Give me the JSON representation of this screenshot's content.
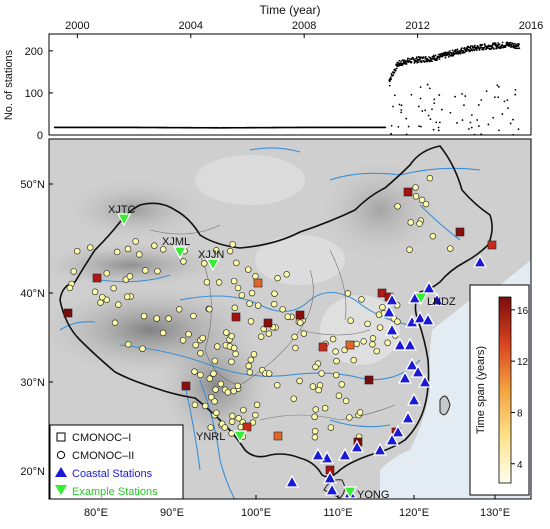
{
  "timeseries": {
    "title": "Time (year)",
    "ylabel": "No. of stations",
    "x_ticks": [
      "2000",
      "2004",
      "2008",
      "2012",
      "2016"
    ],
    "y_ticks": [
      "0",
      "100",
      "200"
    ]
  },
  "map": {
    "lat_labels": [
      "50°N",
      "40°N",
      "30°N",
      "20°N"
    ],
    "lon_labels": [
      "80°E",
      "90°E",
      "100°E",
      "110°E",
      "120°E",
      "130°E"
    ],
    "station_labels": [
      "XJTC",
      "XJML",
      "XJJN",
      "LNDZ",
      "YNRL",
      "YONG"
    ],
    "legend": {
      "items": [
        "CMONOC–I",
        "CMONOC–II",
        "Coastal Stations",
        "Example Stations"
      ],
      "colors": {
        "coastal": "#1a1ad6",
        "example": "#33ee33",
        "marker_fill": "#ffffaa"
      }
    },
    "colorbar": {
      "title": "Time span (years)",
      "ticks": [
        "4",
        "8",
        "12",
        "16"
      ],
      "range": [
        2.5,
        17
      ]
    }
  },
  "chart_data": {
    "type": "scatter",
    "title": "Time (year)",
    "xlabel": "Time (year)",
    "ylabel": "No. of stations",
    "xlim": [
      1999,
      2016
    ],
    "ylim": [
      0,
      240
    ],
    "series": [
      {
        "x": [
          1999.2,
          2002,
          2005,
          2008,
          2010.9
        ],
        "y": [
          18,
          18,
          17,
          18,
          18
        ]
      },
      {
        "x": [
          2011,
          2011.3,
          2011.6,
          2011.9,
          2012.2,
          2012.5,
          2012.8,
          2013.1,
          2013.4,
          2013.7,
          2014,
          2014.4,
          2014.8,
          2015.2,
          2015.6
        ],
        "y": [
          130,
          168,
          175,
          178,
          180,
          182,
          186,
          192,
          198,
          203,
          206,
          210,
          212,
          215,
          212
        ]
      }
    ]
  }
}
